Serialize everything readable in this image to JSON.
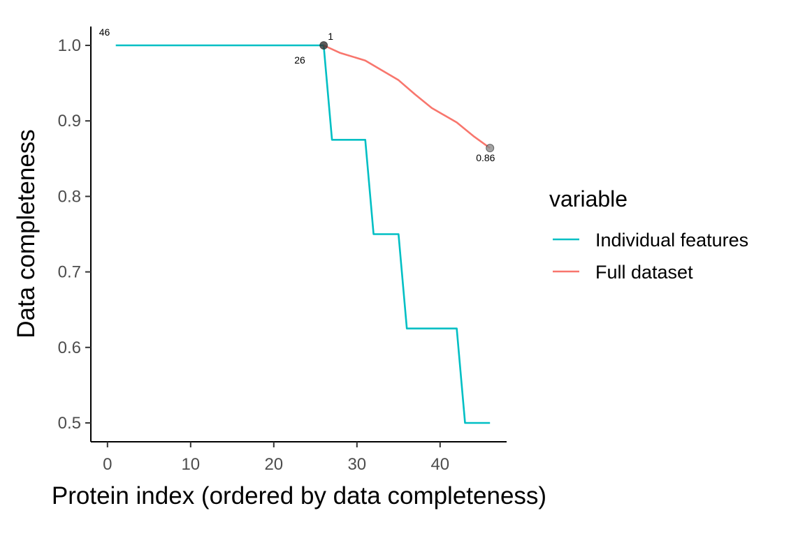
{
  "chart_data": {
    "type": "line",
    "title": "",
    "xlabel": "Protein index (ordered by data completeness)",
    "ylabel": "Data completeness",
    "xlim": [
      -2,
      48
    ],
    "ylim": [
      0.475,
      1.025
    ],
    "x_ticks": [
      0,
      10,
      20,
      30,
      40
    ],
    "y_ticks": [
      0.5,
      0.6,
      0.7,
      0.8,
      0.9,
      1.0
    ],
    "x_tick_labels": [
      "0",
      "10",
      "20",
      "30",
      "40"
    ],
    "y_tick_labels": [
      "0.5",
      "0.6",
      "0.7",
      "0.8",
      "0.9",
      "1.0"
    ],
    "grid": false,
    "legend": {
      "title": "variable",
      "position": "right",
      "entries": [
        "Individual features",
        "Full dataset"
      ]
    },
    "series": [
      {
        "name": "Individual features",
        "color": "#00BFC4",
        "points": [
          [
            1,
            1.0
          ],
          [
            26,
            1.0
          ],
          [
            27,
            0.875
          ],
          [
            31,
            0.875
          ],
          [
            32,
            0.75
          ],
          [
            35,
            0.75
          ],
          [
            36,
            0.625
          ],
          [
            42,
            0.625
          ],
          [
            43,
            0.5
          ],
          [
            46,
            0.5
          ]
        ]
      },
      {
        "name": "Full dataset",
        "color": "#F8766D",
        "points": [
          [
            26,
            1.0
          ],
          [
            28,
            0.99
          ],
          [
            31,
            0.98
          ],
          [
            33,
            0.967
          ],
          [
            35,
            0.954
          ],
          [
            37,
            0.935
          ],
          [
            39,
            0.917
          ],
          [
            42,
            0.898
          ],
          [
            44,
            0.88
          ],
          [
            46,
            0.864
          ]
        ]
      }
    ],
    "markers": [
      {
        "x": 26,
        "y": 1.0,
        "color": "#333333"
      },
      {
        "x": 46,
        "y": 0.864,
        "color": "#8c8c8c"
      }
    ],
    "annotations": [
      {
        "text": "46",
        "x": 1,
        "y": 1.0,
        "color": "#a6a6a6"
      },
      {
        "text": "1",
        "x": 26,
        "y": 1.0,
        "color": "#000000"
      },
      {
        "text": "26",
        "x": 26,
        "y": 1.0,
        "color": "#000000"
      },
      {
        "text": "0.86",
        "x": 46,
        "y": 0.864,
        "color": "#000000"
      }
    ]
  }
}
